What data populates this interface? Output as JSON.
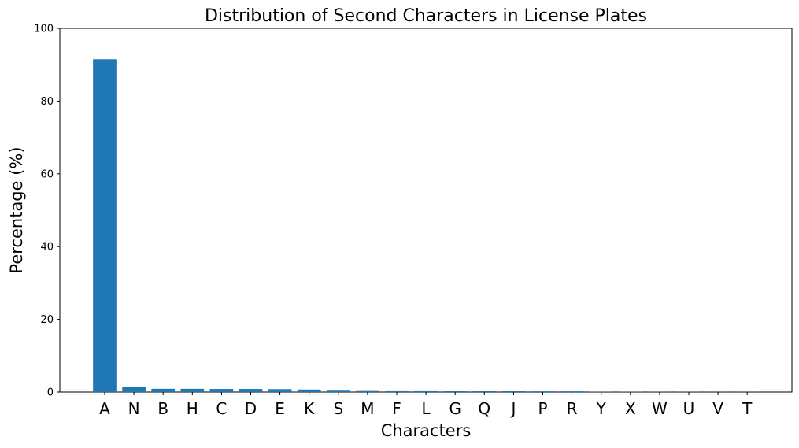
{
  "chart_data": {
    "type": "bar",
    "title": "Distribution of Second Characters in License Plates",
    "xlabel": "Characters",
    "ylabel": "Percentage (%)",
    "ylim": [
      0,
      100
    ],
    "yticks": [
      0,
      20,
      40,
      60,
      80,
      100
    ],
    "grid": false,
    "bar_color": "#1f77b4",
    "categories": [
      "A",
      "N",
      "B",
      "H",
      "C",
      "D",
      "E",
      "K",
      "S",
      "M",
      "F",
      "L",
      "G",
      "Q",
      "J",
      "P",
      "R",
      "Y",
      "X",
      "W",
      "U",
      "V",
      "T"
    ],
    "values": [
      91.5,
      1.3,
      0.9,
      0.9,
      0.85,
      0.85,
      0.8,
      0.7,
      0.6,
      0.5,
      0.45,
      0.45,
      0.4,
      0.35,
      0.25,
      0.2,
      0.2,
      0.05,
      0.05,
      0.03,
      0.03,
      0.02,
      0.02
    ]
  }
}
